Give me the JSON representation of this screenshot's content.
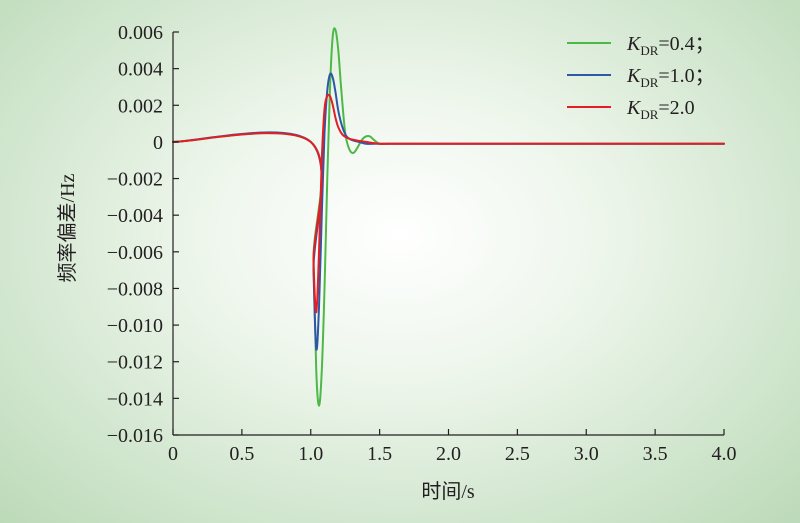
{
  "chart_data": {
    "type": "line",
    "xlabel": "时间/s",
    "ylabel": "频率偏差/Hz",
    "xlim": [
      0,
      4.0
    ],
    "ylim": [
      -0.016,
      0.006
    ],
    "x_ticks": [
      "0",
      "0.5",
      "1.0",
      "1.5",
      "2.0",
      "2.5",
      "3.0",
      "3.5",
      "4.0"
    ],
    "y_ticks": [
      "0.006",
      "0.004",
      "0.002",
      "0",
      "−0.002",
      "−0.004",
      "−0.006",
      "−0.008",
      "−0.010",
      "−0.012",
      "−0.014",
      "−0.016"
    ],
    "grid": false,
    "legend_position": "top-right",
    "series": [
      {
        "name_italic": "K",
        "name_sub": "DR",
        "name_rest": "=0.4；",
        "color": "#4db848",
        "x": [
          0,
          1.0,
          1.02,
          1.04,
          1.06,
          1.08,
          1.1,
          1.12,
          1.14,
          1.16,
          1.18,
          1.2,
          1.22,
          1.25,
          1.28,
          1.31,
          1.34,
          1.37,
          1.4,
          1.43,
          1.46,
          1.5,
          1.55,
          1.6,
          1.65,
          1.7,
          1.8,
          2.0,
          4.0
        ],
        "y": [
          0,
          0,
          -0.0065,
          -0.0125,
          -0.0144,
          -0.0125,
          -0.008,
          -0.002,
          0.003,
          0.0058,
          0.0061,
          0.005,
          0.003,
          0.0005,
          -0.0004,
          -0.0006,
          -0.0003,
          0.0001,
          0.0003,
          0.0003,
          0.0001,
          -0.0001,
          -0.0001,
          -0.0001,
          -0.0001,
          -0.0001,
          -0.0001,
          -0.0001,
          -0.0001
        ]
      },
      {
        "name_italic": "K",
        "name_sub": "DR",
        "name_rest": "=1.0；",
        "color": "#2e57a6",
        "x": [
          0,
          1.0,
          1.02,
          1.04,
          1.06,
          1.08,
          1.1,
          1.12,
          1.14,
          1.16,
          1.18,
          1.2,
          1.23,
          1.26,
          1.3,
          1.35,
          1.4,
          1.5,
          1.6,
          1.7,
          2.0,
          4.0
        ],
        "y": [
          0,
          0,
          -0.007,
          -0.0113,
          -0.009,
          -0.004,
          0.0005,
          0.0028,
          0.0037,
          0.0035,
          0.0027,
          0.0017,
          0.0008,
          0.0003,
          0.0001,
          0.0,
          -0.0001,
          -0.0001,
          -0.0001,
          -0.0001,
          -0.0001,
          -0.0001
        ]
      },
      {
        "name_italic": "K",
        "name_sub": "DR",
        "name_rest": "=2.0",
        "color": "#e31e25",
        "x": [
          0,
          1.0,
          1.02,
          1.04,
          1.06,
          1.08,
          1.1,
          1.12,
          1.14,
          1.16,
          1.18,
          1.2,
          1.23,
          1.27,
          1.32,
          1.4,
          1.5,
          1.6,
          1.7,
          2.0,
          4.0
        ],
        "y": [
          0,
          0,
          -0.0065,
          -0.0093,
          -0.006,
          -0.001,
          0.0018,
          0.0025,
          0.0025,
          0.002,
          0.0013,
          0.0008,
          0.0004,
          0.0002,
          0.0001,
          0.0,
          -0.0001,
          -0.0001,
          -0.0001,
          -0.0001,
          -0.0001
        ]
      }
    ]
  }
}
